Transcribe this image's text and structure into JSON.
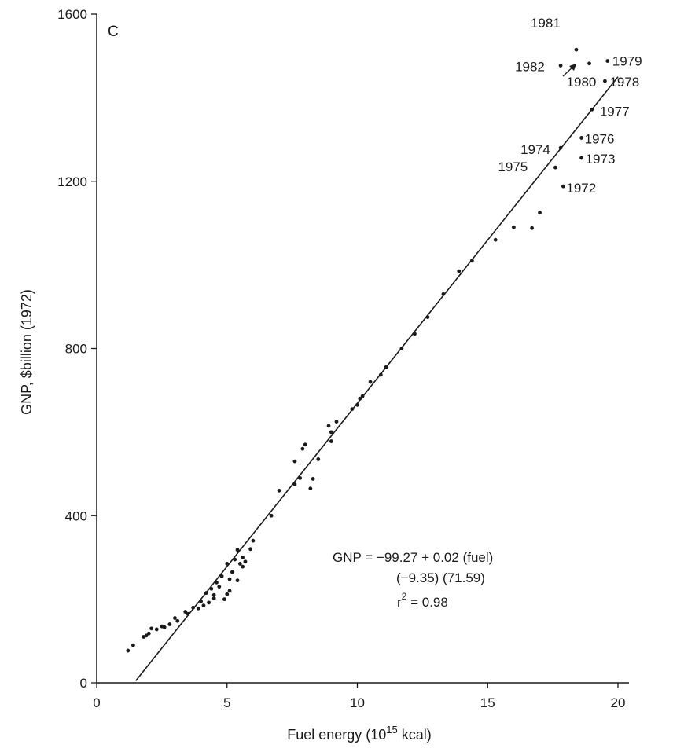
{
  "chart_data": {
    "type": "scatter",
    "panel_label": "C",
    "xlabel_prefix": "Fuel energy (10",
    "xlabel_exp": "15",
    "xlabel_suffix": " kcal)",
    "ylabel": "GNP, $billion (1972)",
    "xlim": [
      0,
      20
    ],
    "ylim": [
      0,
      1600
    ],
    "xticks": [
      0,
      5,
      10,
      15,
      20
    ],
    "yticks": [
      0,
      400,
      800,
      1200,
      1600
    ],
    "grid": false,
    "fit_line": {
      "x": [
        1.5,
        20.0
      ],
      "y": [
        5,
        1450
      ]
    },
    "equation": {
      "line1": "GNP = −99.27 + 0.02 (fuel)",
      "line2": "(−9.35) (71.59)",
      "line3_prefix": "r",
      "line3_exp": "2",
      "line3_suffix": " = 0.98"
    },
    "annotated_points": [
      {
        "label": "1981",
        "x": 18.4,
        "y": 1515
      },
      {
        "label": "1982",
        "x": 17.8,
        "y": 1477
      },
      {
        "label": "1980",
        "x": 18.9,
        "y": 1482
      },
      {
        "label": "1979",
        "x": 19.6,
        "y": 1488
      },
      {
        "label": "1978",
        "x": 19.5,
        "y": 1440
      },
      {
        "label": "1977",
        "x": 19.0,
        "y": 1372
      },
      {
        "label": "1974",
        "x": 17.8,
        "y": 1280
      },
      {
        "label": "1976",
        "x": 18.6,
        "y": 1304
      },
      {
        "label": "1975",
        "x": 17.6,
        "y": 1233
      },
      {
        "label": "1973",
        "x": 18.6,
        "y": 1256
      },
      {
        "label": "1972",
        "x": 17.9,
        "y": 1188
      }
    ],
    "points": [
      {
        "x": 1.2,
        "y": 77
      },
      {
        "x": 1.4,
        "y": 90
      },
      {
        "x": 1.8,
        "y": 110
      },
      {
        "x": 1.9,
        "y": 113
      },
      {
        "x": 2.0,
        "y": 118
      },
      {
        "x": 2.1,
        "y": 130
      },
      {
        "x": 2.3,
        "y": 128
      },
      {
        "x": 2.5,
        "y": 135
      },
      {
        "x": 2.6,
        "y": 133
      },
      {
        "x": 2.8,
        "y": 140
      },
      {
        "x": 3.0,
        "y": 155
      },
      {
        "x": 3.1,
        "y": 148
      },
      {
        "x": 3.4,
        "y": 170
      },
      {
        "x": 3.5,
        "y": 165
      },
      {
        "x": 3.7,
        "y": 180
      },
      {
        "x": 3.9,
        "y": 178
      },
      {
        "x": 4.0,
        "y": 195
      },
      {
        "x": 4.1,
        "y": 185
      },
      {
        "x": 4.2,
        "y": 215
      },
      {
        "x": 4.3,
        "y": 192
      },
      {
        "x": 4.4,
        "y": 225
      },
      {
        "x": 4.5,
        "y": 210
      },
      {
        "x": 4.6,
        "y": 240
      },
      {
        "x": 4.5,
        "y": 202
      },
      {
        "x": 4.7,
        "y": 230
      },
      {
        "x": 4.8,
        "y": 255
      },
      {
        "x": 4.9,
        "y": 200
      },
      {
        "x": 5.0,
        "y": 212
      },
      {
        "x": 5.0,
        "y": 285
      },
      {
        "x": 5.1,
        "y": 220
      },
      {
        "x": 5.1,
        "y": 248
      },
      {
        "x": 5.2,
        "y": 265
      },
      {
        "x": 5.3,
        "y": 295
      },
      {
        "x": 5.4,
        "y": 318
      },
      {
        "x": 5.4,
        "y": 245
      },
      {
        "x": 5.5,
        "y": 285
      },
      {
        "x": 5.6,
        "y": 278
      },
      {
        "x": 5.6,
        "y": 300
      },
      {
        "x": 5.7,
        "y": 290
      },
      {
        "x": 5.9,
        "y": 320
      },
      {
        "x": 6.0,
        "y": 340
      },
      {
        "x": 6.7,
        "y": 400
      },
      {
        "x": 7.0,
        "y": 460
      },
      {
        "x": 7.6,
        "y": 475
      },
      {
        "x": 7.6,
        "y": 530
      },
      {
        "x": 7.8,
        "y": 490
      },
      {
        "x": 7.9,
        "y": 560
      },
      {
        "x": 8.0,
        "y": 570
      },
      {
        "x": 8.2,
        "y": 465
      },
      {
        "x": 8.3,
        "y": 488
      },
      {
        "x": 8.5,
        "y": 535
      },
      {
        "x": 8.9,
        "y": 615
      },
      {
        "x": 9.0,
        "y": 600
      },
      {
        "x": 9.0,
        "y": 578
      },
      {
        "x": 9.2,
        "y": 625
      },
      {
        "x": 9.8,
        "y": 655
      },
      {
        "x": 10.0,
        "y": 665
      },
      {
        "x": 10.1,
        "y": 680
      },
      {
        "x": 10.2,
        "y": 686
      },
      {
        "x": 10.5,
        "y": 720
      },
      {
        "x": 10.9,
        "y": 737
      },
      {
        "x": 11.1,
        "y": 755
      },
      {
        "x": 11.7,
        "y": 800
      },
      {
        "x": 12.2,
        "y": 835
      },
      {
        "x": 12.7,
        "y": 875
      },
      {
        "x": 13.3,
        "y": 930
      },
      {
        "x": 13.9,
        "y": 985
      },
      {
        "x": 14.4,
        "y": 1010
      },
      {
        "x": 15.3,
        "y": 1060
      },
      {
        "x": 16.0,
        "y": 1090
      },
      {
        "x": 16.7,
        "y": 1088
      },
      {
        "x": 17.0,
        "y": 1125
      }
    ]
  }
}
